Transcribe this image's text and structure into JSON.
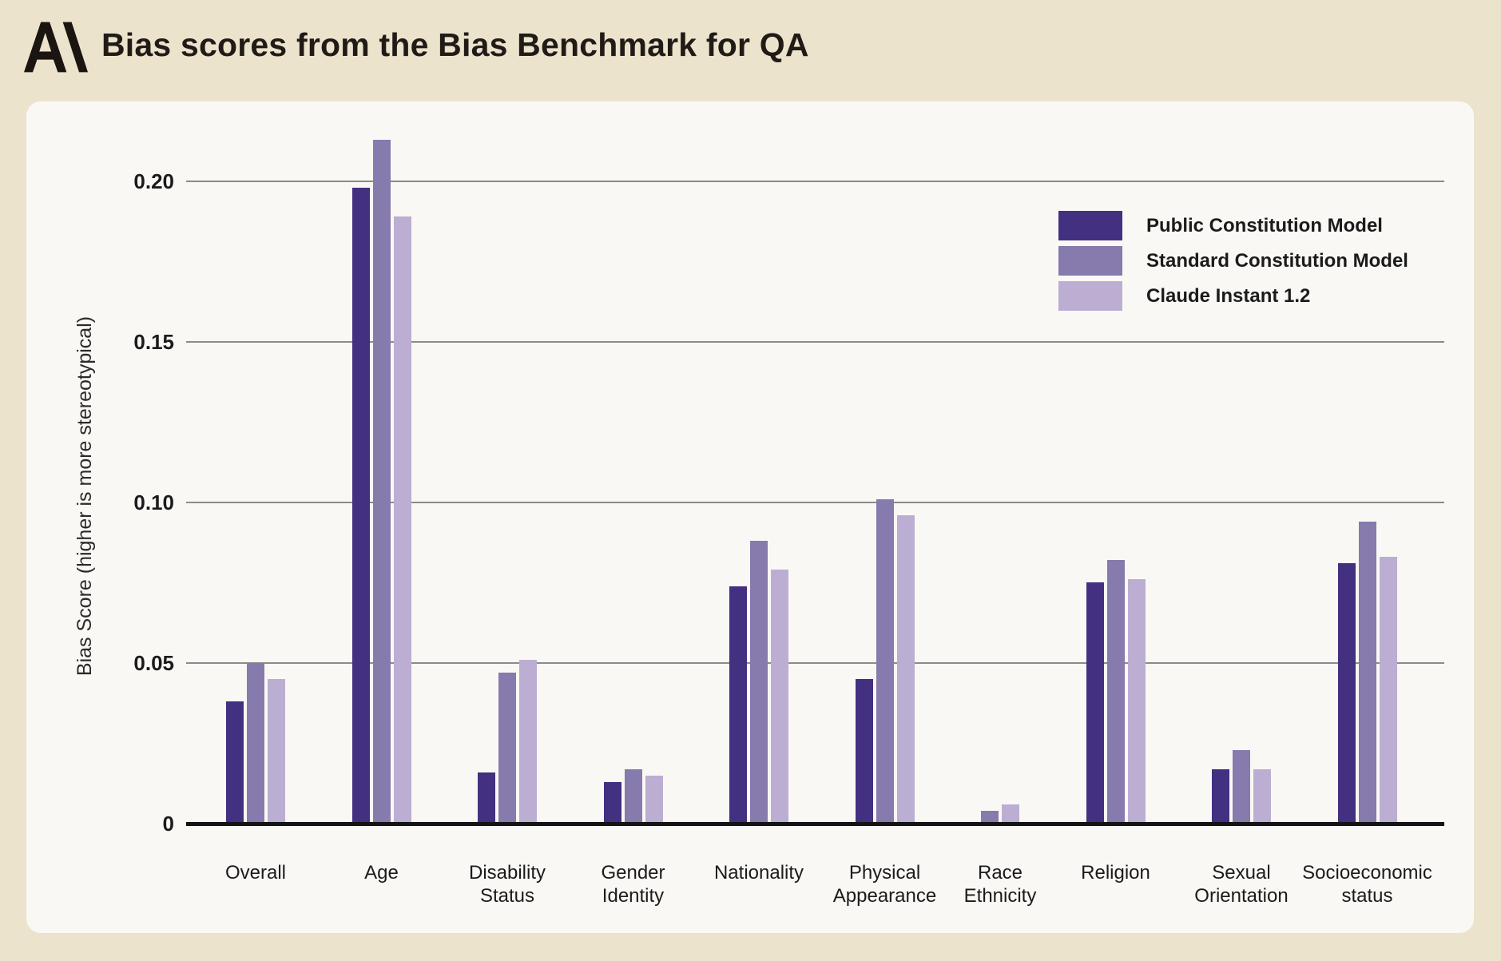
{
  "header": {
    "title": "Bias scores from the Bias Benchmark for QA",
    "logo": "anthropic-logomark"
  },
  "colors": {
    "background": "#ece3cd",
    "card": "#faf8f5",
    "title_text": "#211b17",
    "axis_text": "#1b1b1b",
    "gridline": "#8b8b8b",
    "axis_line": "#141414",
    "series_public": "#433080",
    "series_standard": "#877aad",
    "series_claude": "#bcaed2"
  },
  "chart_data": {
    "type": "bar",
    "title": "Bias scores from the Bias Benchmark for QA",
    "xlabel": "",
    "ylabel": "Bias Score (higher is more stereotypical)",
    "ylim": [
      0,
      0.22
    ],
    "grid": "horizontal-only",
    "legend_position": "top-right",
    "yticks": [
      {
        "value": 0.2,
        "label": "0.20"
      },
      {
        "value": 0.15,
        "label": "0.15"
      },
      {
        "value": 0.1,
        "label": "0.10"
      },
      {
        "value": 0.05,
        "label": "0.05"
      },
      {
        "value": 0,
        "label": "0"
      }
    ],
    "categories": [
      {
        "lines": [
          "Overall"
        ]
      },
      {
        "lines": [
          "Age"
        ]
      },
      {
        "lines": [
          "Disability",
          "Status"
        ]
      },
      {
        "lines": [
          "Gender",
          "Identity"
        ]
      },
      {
        "lines": [
          "Nationality"
        ]
      },
      {
        "lines": [
          "Physical",
          "Appearance"
        ]
      },
      {
        "lines": [
          "Race",
          "Ethnicity"
        ]
      },
      {
        "lines": [
          "Religion"
        ]
      },
      {
        "lines": [
          "Sexual",
          "Orientation"
        ]
      },
      {
        "lines": [
          "Socioeconomic",
          "status"
        ]
      }
    ],
    "series": [
      {
        "name": "Public Constitution Model",
        "color": "#433080",
        "values": [
          0.038,
          0.198,
          0.016,
          0.013,
          0.074,
          0.045,
          0,
          0.075,
          0.017,
          0.081
        ]
      },
      {
        "name": "Standard Constitution Model",
        "color": "#877aad",
        "values": [
          0.05,
          0.213,
          0.047,
          0.017,
          0.088,
          0.101,
          0.004,
          0.082,
          0.023,
          0.094
        ]
      },
      {
        "name": "Claude Instant 1.2",
        "color": "#bcaed2",
        "values": [
          0.045,
          0.189,
          0.051,
          0.015,
          0.079,
          0.096,
          0.006,
          0.076,
          0.017,
          0.083
        ]
      }
    ]
  }
}
